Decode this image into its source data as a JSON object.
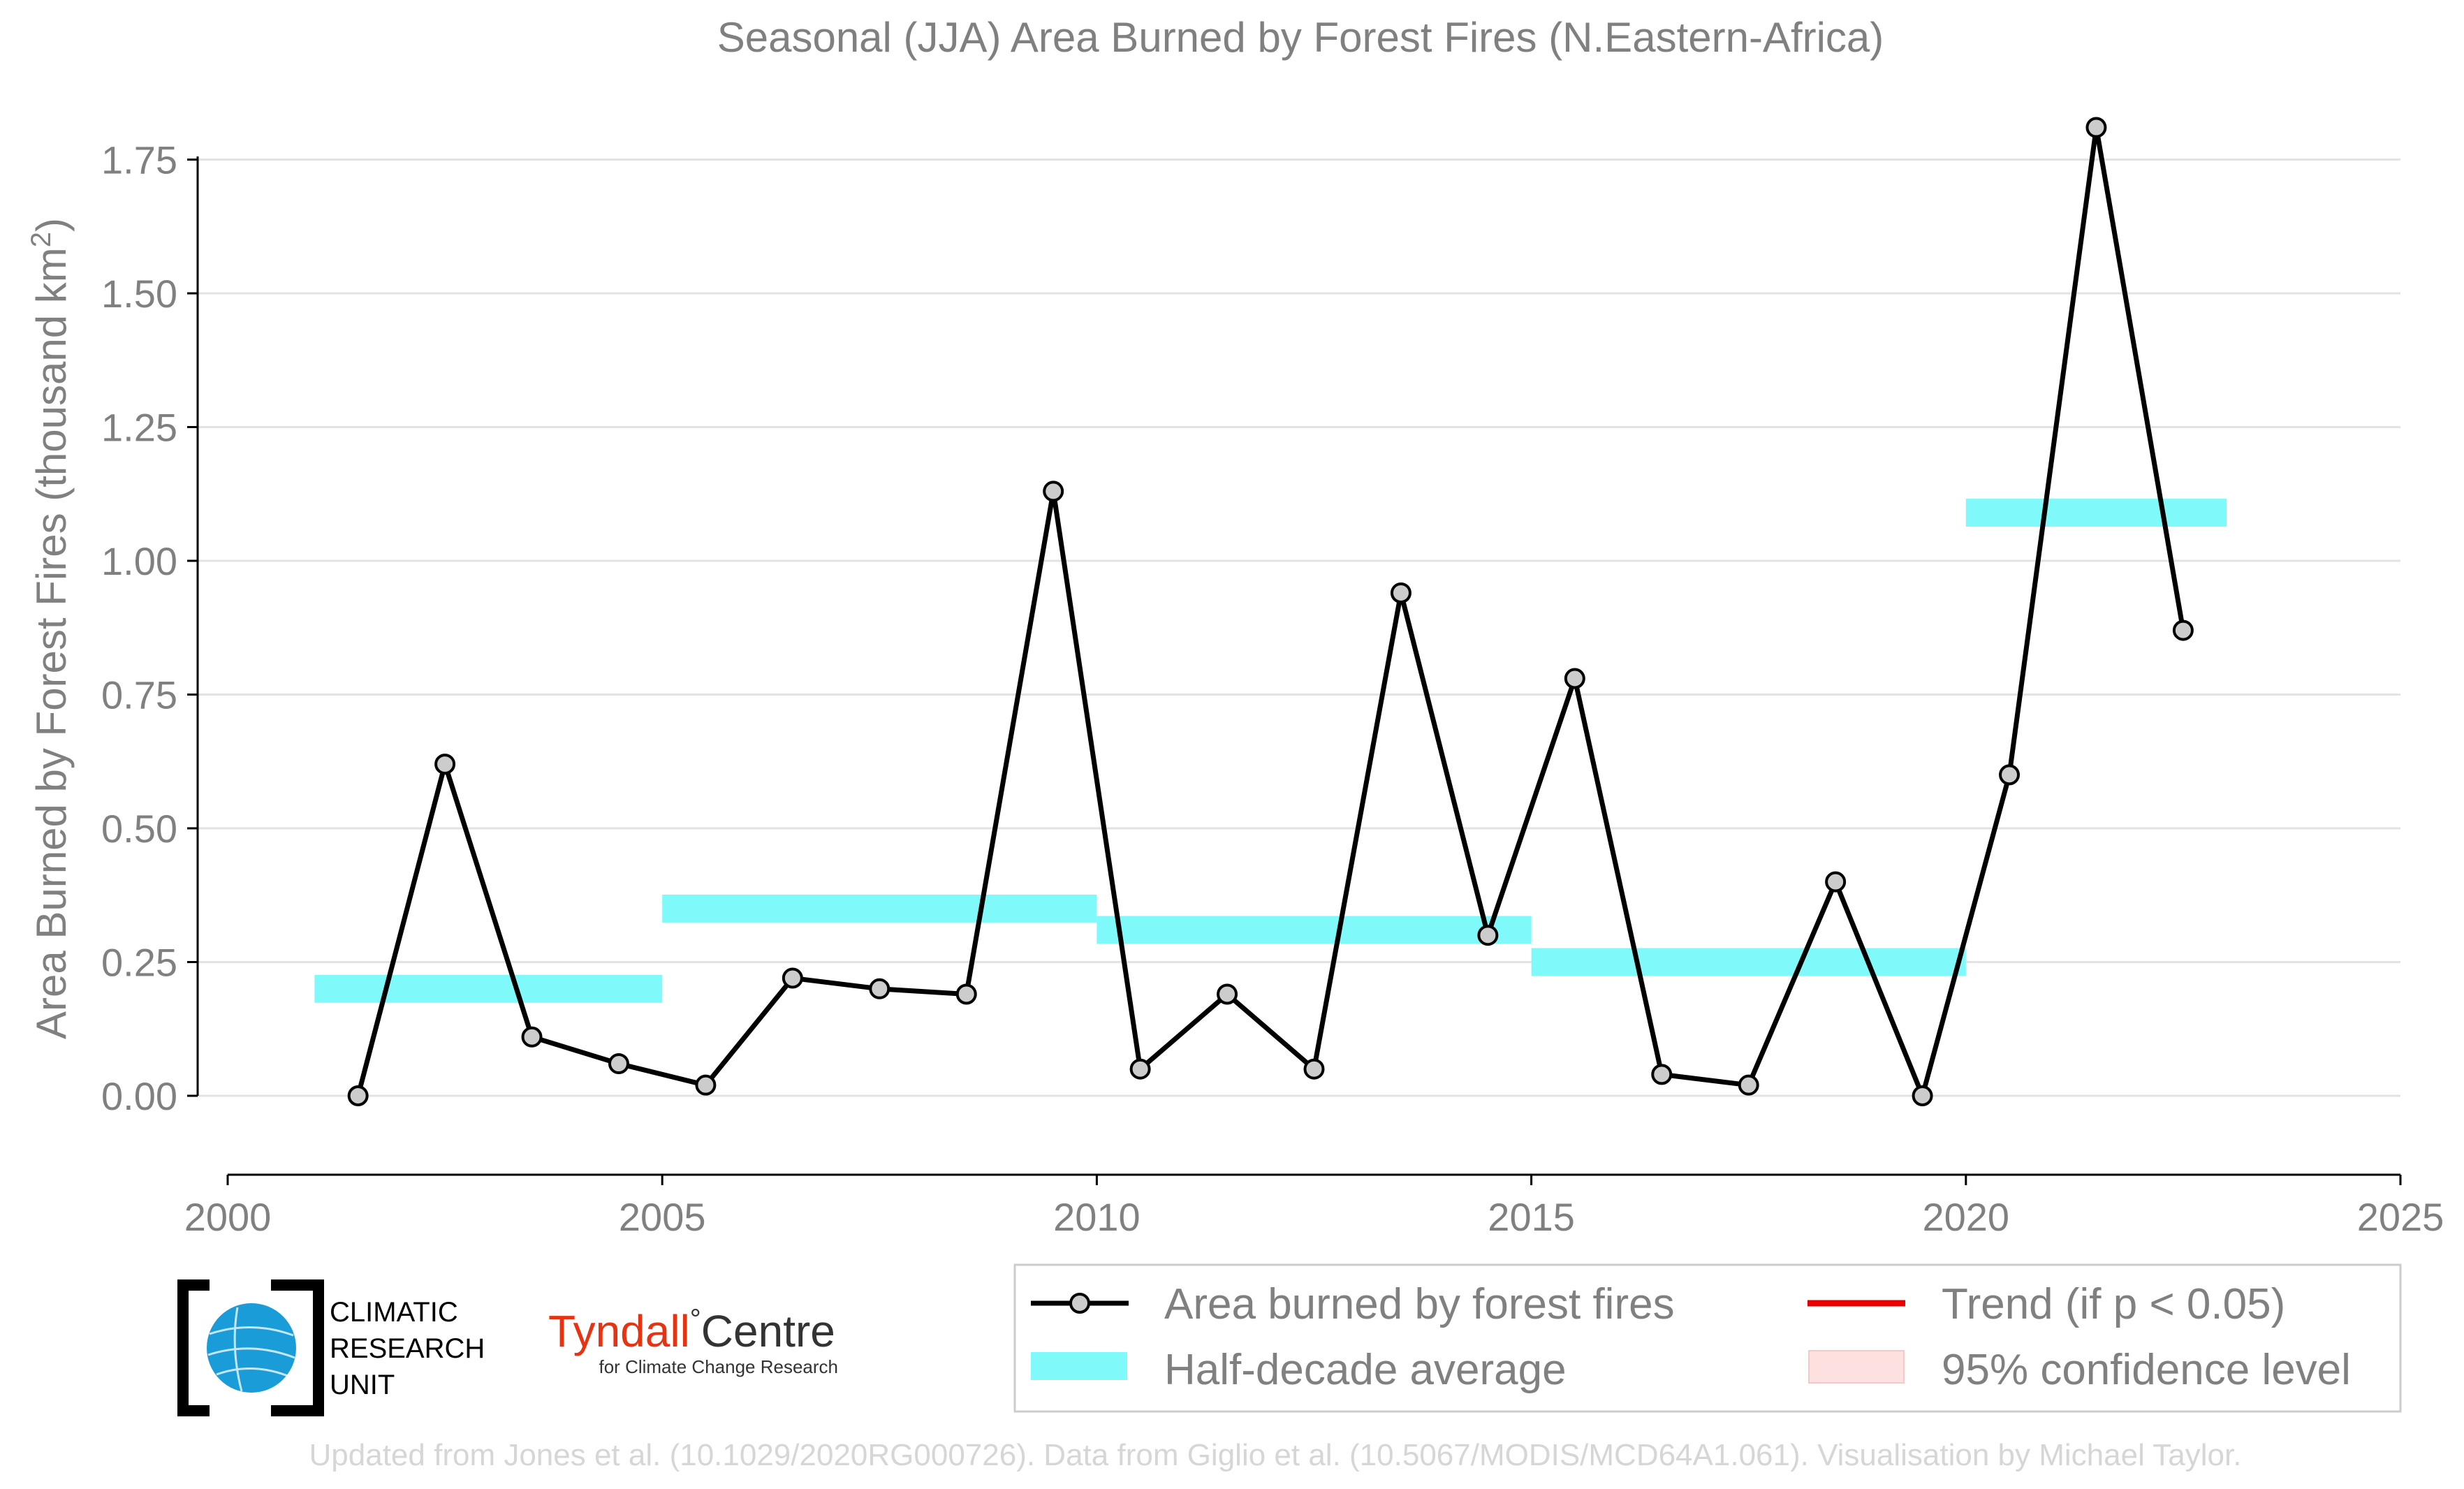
{
  "chart_data": {
    "type": "line",
    "title": "Seasonal (JJA) Area Burned by Forest Fires (N.Eastern-Africa)",
    "ylabel": "Area Burned by Forest Fires (thousand km",
    "ylabel_sup": "2",
    "ylabel_close": ")",
    "xlim": [
      2000,
      2025
    ],
    "ylim": [
      -0.15,
      1.85
    ],
    "x_ticks": [
      2000,
      2005,
      2010,
      2015,
      2020,
      2025
    ],
    "x_tick_labels": [
      "2000",
      "2005",
      "2010",
      "2015",
      "2020",
      "2025"
    ],
    "y_ticks": [
      0,
      0.25,
      0.5,
      0.75,
      1.0,
      1.25,
      1.5,
      1.75
    ],
    "y_tick_labels": [
      "0.00",
      "0.25",
      "0.50",
      "0.75",
      "1.00",
      "1.25",
      "1.50",
      "1.75"
    ],
    "grid": "horizontal",
    "series": [
      {
        "name": "Area burned by forest fires",
        "color": "#000000",
        "marker_fill": "#cccccc",
        "x": [
          2001.5,
          2002.5,
          2003.5,
          2004.5,
          2005.5,
          2006.5,
          2007.5,
          2008.5,
          2009.5,
          2010.5,
          2011.5,
          2012.5,
          2013.5,
          2014.5,
          2015.5,
          2016.5,
          2017.5,
          2018.5,
          2019.5,
          2020.5,
          2021.5,
          2022.5
        ],
        "values": [
          0.0,
          0.62,
          0.11,
          0.06,
          0.02,
          0.22,
          0.2,
          0.19,
          1.13,
          0.05,
          0.19,
          0.05,
          0.94,
          0.3,
          0.78,
          0.04,
          0.02,
          0.4,
          0.0,
          0.6,
          1.81,
          0.87
        ]
      }
    ],
    "half_decade_average": {
      "name": "Half-decade average",
      "color": "#7ff9f9",
      "segments": [
        {
          "x_start": 2001,
          "x_end": 2005,
          "value": 0.2
        },
        {
          "x_start": 2005,
          "x_end": 2010,
          "value": 0.35
        },
        {
          "x_start": 2010,
          "x_end": 2015,
          "value": 0.31
        },
        {
          "x_start": 2015,
          "x_end": 2020,
          "value": 0.25
        },
        {
          "x_start": 2020,
          "x_end": 2023,
          "value": 1.09
        }
      ]
    },
    "legend": {
      "placement": "bottom",
      "entries": [
        {
          "label": "Area burned by forest fires",
          "kind": "line-marker",
          "color": "#000000"
        },
        {
          "label": "Half-decade average",
          "kind": "band",
          "color": "#7ff9f9"
        },
        {
          "label": "Trend (if p < 0.05)",
          "kind": "line",
          "color": "#e60000"
        },
        {
          "label": "95% confidence level",
          "kind": "patch",
          "color": "#fde0e0"
        }
      ]
    }
  },
  "logos": {
    "cru": {
      "line1": "CLIMATIC",
      "line2": "RESEARCH",
      "line3": "UNIT",
      "globe_color": "#1a9cd8"
    },
    "tyndall": {
      "name": "Tyndall",
      "degree": "°",
      "centre": "Centre",
      "subtitle": "for Climate Change Research",
      "name_color": "#e63312"
    }
  },
  "credit": "Updated from Jones et al. (10.1029/2020RG000726). Data from Giglio et al. (10.5067/MODIS/MCD64A1.061). Visualisation by Michael Taylor."
}
